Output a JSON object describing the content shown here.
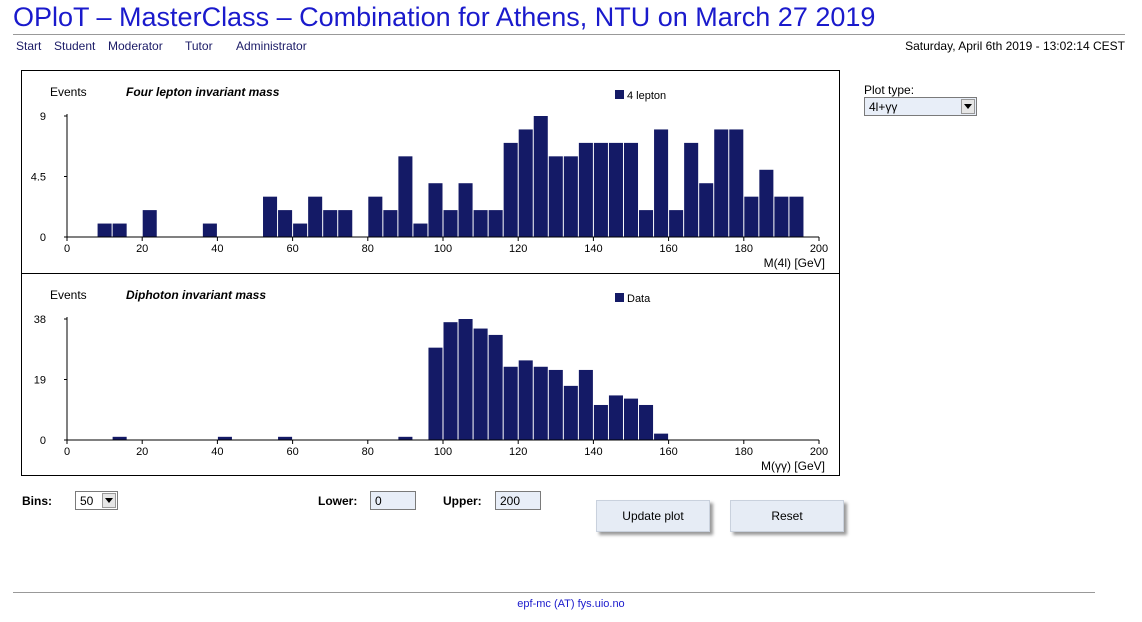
{
  "page": {
    "title": "OPloT – MasterClass – Combination for Athens, NTU on March 27 2019",
    "datetime": "Saturday, April 6th 2019 - 13:02:14 CEST",
    "footer": "epf-mc (AT) fys.uio.no"
  },
  "nav": [
    "Start",
    "Student",
    "Moderator",
    "Tutor",
    "Administrator"
  ],
  "plot_type": {
    "label": "Plot type:",
    "value": "4l+γγ"
  },
  "controls": {
    "bins_label": "Bins:",
    "bins_value": "50",
    "lower_label": "Lower:",
    "lower_value": "0",
    "upper_label": "Upper:",
    "upper_value": "200",
    "update_label": "Update plot",
    "reset_label": "Reset"
  },
  "colors": {
    "bar": "#141a66",
    "title": "#1a1acc"
  },
  "chart_data": [
    {
      "type": "bar",
      "title": "Four lepton invariant mass",
      "ylabel": "Events",
      "xlabel": "M(4l) [GeV]",
      "legend": "4 lepton",
      "legend_position": "top-right",
      "xlim": [
        0,
        200
      ],
      "bin_width": 4,
      "ylim": [
        0,
        9
      ],
      "yticks": [
        "0",
        "4.5",
        "9"
      ],
      "xticks": [
        "0",
        "20",
        "40",
        "60",
        "80",
        "100",
        "120",
        "140",
        "160",
        "180",
        "200"
      ],
      "values": [
        0,
        0,
        1,
        1,
        0,
        2,
        0,
        0,
        0,
        1,
        0,
        0,
        0,
        3,
        2,
        1,
        3,
        2,
        2,
        0,
        3,
        2,
        6,
        1,
        4,
        2,
        4,
        2,
        2,
        7,
        8,
        9,
        6,
        6,
        7,
        7,
        7,
        7,
        2,
        8,
        2,
        7,
        4,
        8,
        8,
        3,
        5,
        3,
        3,
        0
      ]
    },
    {
      "type": "bar",
      "title": "Diphoton invariant mass",
      "ylabel": "Events",
      "xlabel": "M(γγ) [GeV]",
      "legend": "Data",
      "legend_position": "top-right",
      "xlim": [
        0,
        200
      ],
      "bin_width": 4,
      "ylim": [
        0,
        38
      ],
      "yticks": [
        "0",
        "19",
        "38"
      ],
      "xticks": [
        "0",
        "20",
        "40",
        "60",
        "80",
        "100",
        "120",
        "140",
        "160",
        "180",
        "200"
      ],
      "values": [
        0,
        0,
        0,
        1,
        0,
        0,
        0,
        0,
        0,
        0,
        1,
        0,
        0,
        0,
        1,
        0,
        0,
        0,
        0,
        0,
        0,
        0,
        1,
        0,
        29,
        37,
        38,
        35,
        33,
        23,
        25,
        23,
        22,
        17,
        22,
        11,
        14,
        13,
        11,
        2,
        0,
        0,
        0,
        0,
        0,
        0,
        0,
        0,
        0,
        0
      ]
    }
  ]
}
